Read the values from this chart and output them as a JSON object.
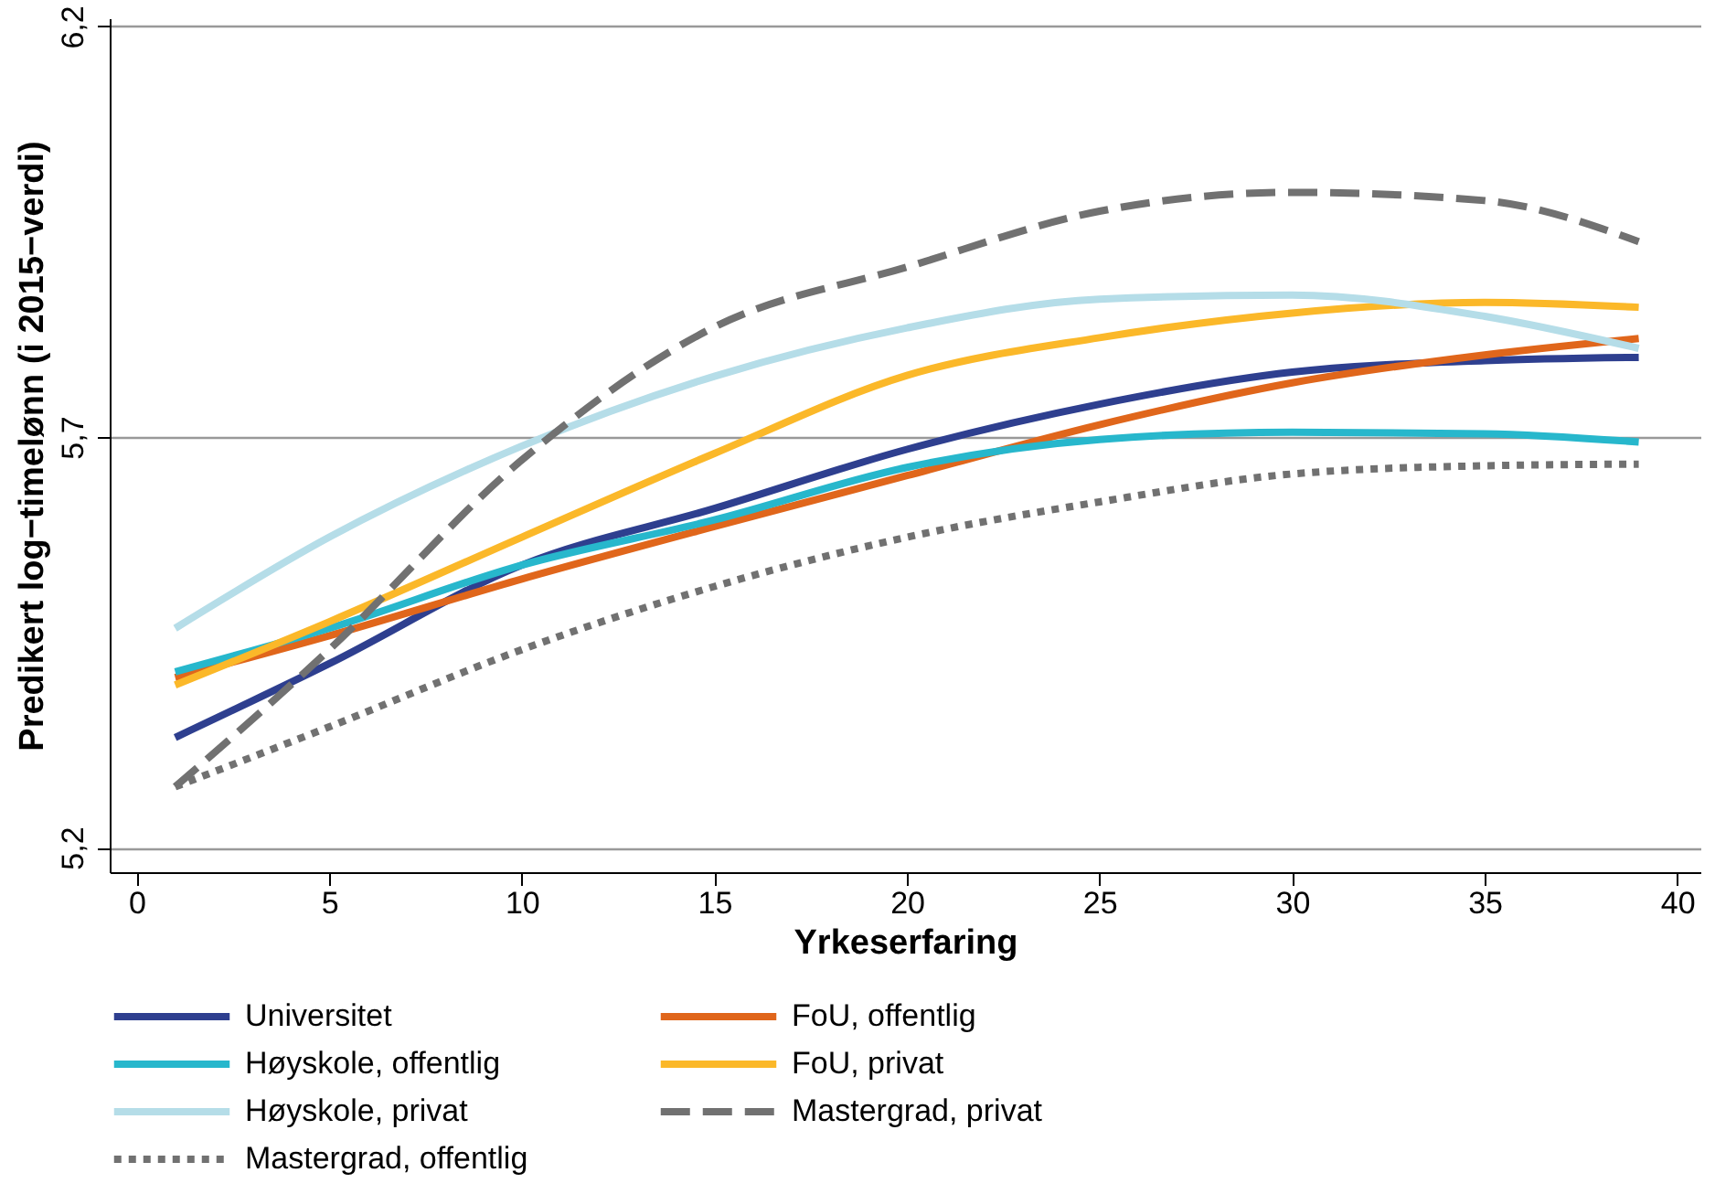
{
  "chart_data": {
    "type": "line",
    "xlabel": "Yrkeserfaring",
    "ylabel": "Predikert log−timelønn (i 2015−verdi)",
    "x": [
      1,
      5,
      10,
      15,
      20,
      25,
      30,
      35,
      39
    ],
    "xlim": [
      -0.7,
      40.6
    ],
    "xticks": [
      0,
      5,
      10,
      15,
      20,
      25,
      30,
      35,
      40
    ],
    "ylim": [
      5.17,
      6.21
    ],
    "yticks": [
      {
        "value": 5.2,
        "label": "5,2"
      },
      {
        "value": 5.7,
        "label": "5,7"
      },
      {
        "value": 6.2,
        "label": "6,2"
      }
    ],
    "grid": "y",
    "legend": "bottom",
    "line_style": "solid",
    "series": [
      {
        "name": "Universitet",
        "color": "#2e3f8f",
        "values": [
          5.334,
          5.424,
          5.544,
          5.613,
          5.685,
          5.74,
          5.779,
          5.793,
          5.797
        ]
      },
      {
        "name": "FoU, offentlig",
        "color": "#e0661b",
        "values": [
          5.407,
          5.458,
          5.527,
          5.591,
          5.653,
          5.715,
          5.766,
          5.8,
          5.82
        ]
      },
      {
        "name": "Høyskole, offentlig",
        "color": "#27b7cc",
        "values": [
          5.414,
          5.467,
          5.544,
          5.599,
          5.663,
          5.697,
          5.706,
          5.704,
          5.694
        ]
      },
      {
        "name": "FoU, privat",
        "color": "#fbb829",
        "values": [
          5.398,
          5.475,
          5.578,
          5.68,
          5.775,
          5.821,
          5.851,
          5.864,
          5.858
        ]
      },
      {
        "name": "Høyskole, privat",
        "color": "#b5dde8",
        "values": [
          5.467,
          5.578,
          5.689,
          5.774,
          5.833,
          5.868,
          5.873,
          5.847,
          5.808
        ]
      },
      {
        "name": "Mastergrad, privat",
        "color": "#717171",
        "line_style": "dashed",
        "values": [
          5.274,
          5.441,
          5.672,
          5.834,
          5.907,
          5.975,
          5.998,
          5.988,
          5.938
        ]
      },
      {
        "name": "Mastergrad, offentlig",
        "color": "#717171",
        "line_style": "dotted",
        "values": [
          5.274,
          5.347,
          5.441,
          5.518,
          5.578,
          5.621,
          5.655,
          5.665,
          5.667
        ]
      }
    ]
  }
}
